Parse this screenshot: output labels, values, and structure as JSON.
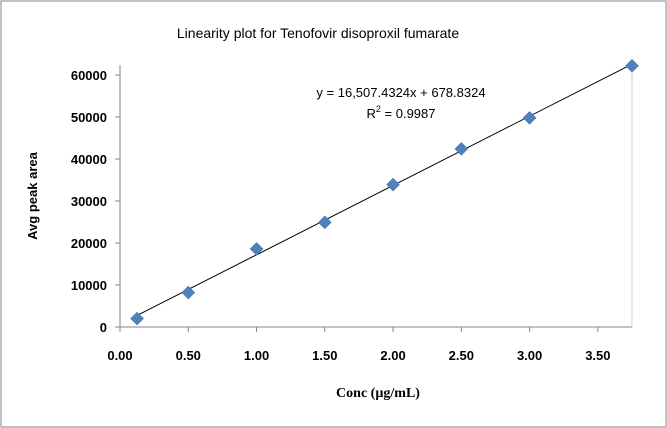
{
  "chart_data": {
    "type": "scatter",
    "title": "Linearity plot for  Tenofovir disoproxil fumarate",
    "xlabel": "Conc (µg/mL)",
    "ylabel": "Avg peak area",
    "xlim": [
      0,
      3.75
    ],
    "ylim": [
      0,
      60000
    ],
    "x_ticks": [
      "0.00",
      "0.50",
      "1.00",
      "1.50",
      "2.00",
      "2.50",
      "3.00",
      "3.50"
    ],
    "y_ticks": [
      "0",
      "10000",
      "20000",
      "30000",
      "40000",
      "50000",
      "60000"
    ],
    "grid": false,
    "legend": "none",
    "marker_color": "#4f81bd",
    "trendline_color": "#000000",
    "series": [
      {
        "x": [
          0.125,
          0.5,
          1.0,
          1.5,
          2.0,
          2.5,
          3.0,
          3.75
        ],
        "y": [
          2000,
          8200,
          18600,
          24900,
          33900,
          42400,
          49800,
          62200
        ]
      }
    ],
    "trendline": {
      "slope": 16507.4324,
      "intercept": 678.8324,
      "x_range": [
        0.125,
        3.75
      ]
    },
    "equation_text": "y = 16,507.4324x + 678.8324",
    "r2_label": "R",
    "r2_sup": "2",
    "r2_value": " = 0.9987"
  }
}
